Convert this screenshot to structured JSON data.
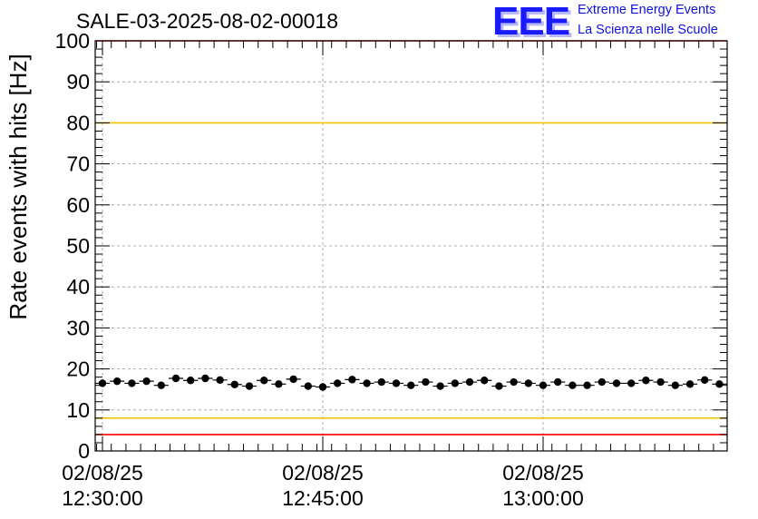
{
  "header": {
    "logo_text": "EEE",
    "logo_line1": "Extreme Energy Events",
    "logo_line2": "La Scienza nelle Scuole"
  },
  "chart_data": {
    "type": "scatter",
    "title": "SALE-03-2025-08-02-00018",
    "xlabel": "",
    "ylabel": "Rate events with hits [Hz]",
    "ylim": [
      0,
      100
    ],
    "yticks": [
      0,
      10,
      20,
      30,
      40,
      50,
      60,
      70,
      80,
      90,
      100
    ],
    "xticks": [
      {
        "date": "02/08/25",
        "time": "12:30:00"
      },
      {
        "date": "02/08/25",
        "time": "12:45:00"
      },
      {
        "date": "02/08/25",
        "time": "13:00:00"
      }
    ],
    "grid": true,
    "reference_lines": [
      {
        "y": 100,
        "color": "#ff0000"
      },
      {
        "y": 80,
        "color": "#f2c200"
      },
      {
        "y": 8,
        "color": "#f2c200"
      },
      {
        "y": 4,
        "color": "#ff0000"
      }
    ],
    "series": [
      {
        "color": "#000000",
        "x": [
          "12:30:00",
          "12:31:00",
          "12:32:00",
          "12:33:00",
          "12:34:00",
          "12:35:00",
          "12:36:00",
          "12:37:00",
          "12:38:00",
          "12:39:00",
          "12:40:00",
          "12:41:00",
          "12:42:00",
          "12:43:00",
          "12:44:00",
          "12:45:00",
          "12:46:00",
          "12:47:00",
          "12:48:00",
          "12:49:00",
          "12:50:00",
          "12:51:00",
          "12:52:00",
          "12:53:00",
          "12:54:00",
          "12:55:00",
          "12:56:00",
          "12:57:00",
          "12:58:00",
          "12:59:00",
          "13:00:00",
          "13:01:00",
          "13:02:00",
          "13:03:00",
          "13:04:00",
          "13:05:00",
          "13:06:00",
          "13:07:00",
          "13:08:00",
          "13:09:00",
          "13:10:00",
          "13:11:00",
          "13:12:00"
        ],
        "values": [
          16.5,
          17.0,
          16.5,
          17.0,
          16.0,
          17.7,
          17.2,
          17.7,
          17.3,
          16.2,
          15.8,
          17.2,
          16.3,
          17.5,
          15.8,
          15.6,
          16.5,
          17.4,
          16.5,
          16.8,
          16.5,
          16.0,
          16.8,
          15.8,
          16.5,
          16.8,
          17.2,
          15.8,
          16.8,
          16.5,
          16.0,
          16.8,
          16.0,
          16.0,
          16.8,
          16.5,
          16.5,
          17.2,
          16.8,
          16.0,
          16.3,
          17.3,
          16.3
        ]
      }
    ]
  }
}
